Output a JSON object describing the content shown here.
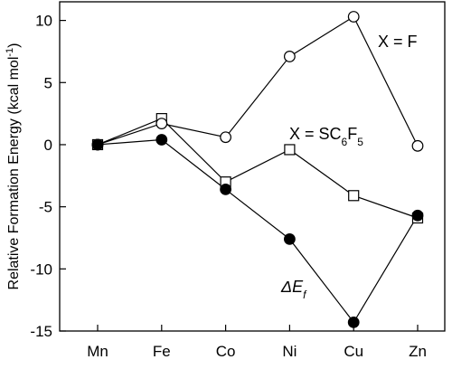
{
  "chart_data": {
    "type": "line",
    "title": "",
    "xlabel": "",
    "ylabel": "Relative Formation Energy (kcal mol",
    "ylabel_sup": "-1",
    "ylabel_close": ")",
    "ylim": [
      -15,
      11.5
    ],
    "yticks": [
      10,
      5,
      0,
      -5,
      -10,
      -15
    ],
    "ytick_labels": [
      "10",
      "5",
      "0",
      "-5",
      "-10",
      "-15"
    ],
    "categories": [
      "Mn",
      "Fe",
      "Co",
      "Ni",
      "Cu",
      "Zn"
    ],
    "series": [
      {
        "name": "X = F",
        "marker": "open-circle",
        "values": [
          0.0,
          1.7,
          0.6,
          7.1,
          10.3,
          -0.1
        ]
      },
      {
        "name": "X = SC6F5",
        "marker": "open-square",
        "values": [
          0.0,
          2.1,
          -3.0,
          -0.4,
          -4.1,
          -5.9
        ]
      },
      {
        "name": "ΔEf",
        "marker": "filled-circle",
        "values": [
          0.0,
          0.4,
          -3.6,
          -7.6,
          -14.3,
          -5.7
        ]
      }
    ],
    "annotations": {
      "f_prefix": "X = F",
      "sc_prefix": "X = SC",
      "sc_sub1": "6",
      "sc_mid": "F",
      "sc_sub2": "5",
      "de_main": "ΔE",
      "de_sub": "f"
    },
    "grid": false,
    "legend": "none (inline labels)"
  }
}
